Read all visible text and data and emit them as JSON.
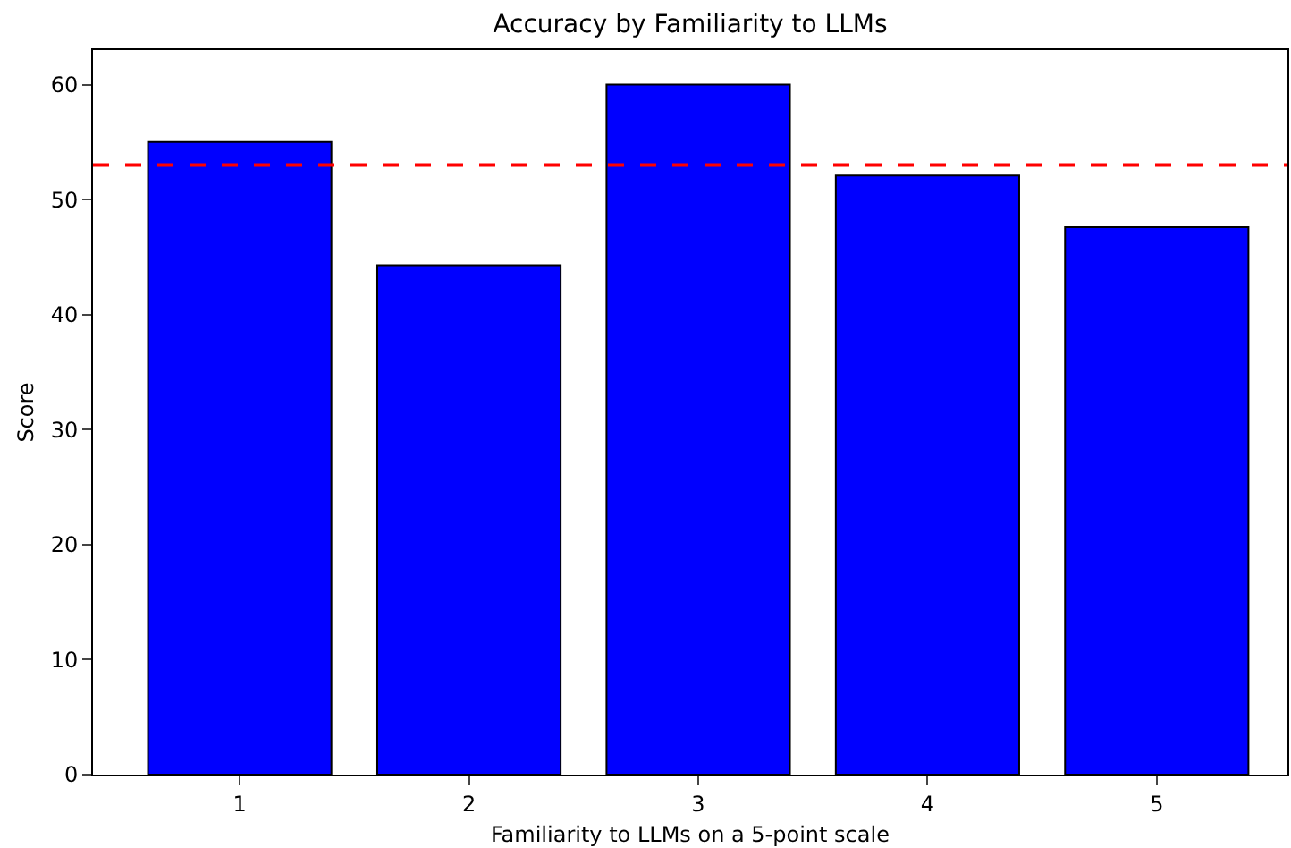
{
  "chart_data": {
    "type": "bar",
    "title": "Accuracy by Familiarity to LLMs",
    "xlabel": "Familiarity to LLMs on a 5-point scale",
    "ylabel": "Score",
    "categories": [
      "1",
      "2",
      "3",
      "4",
      "5"
    ],
    "values": [
      55.0,
      44.3,
      60.0,
      52.1,
      47.6
    ],
    "color": "#0000ff",
    "ylim": [
      0,
      63
    ],
    "yticks": [
      0,
      10,
      20,
      30,
      40,
      50,
      60
    ],
    "ref_lines": [
      {
        "axis": "y",
        "value": 53.0,
        "color": "#ff0000",
        "line_style": "dashed"
      }
    ]
  }
}
